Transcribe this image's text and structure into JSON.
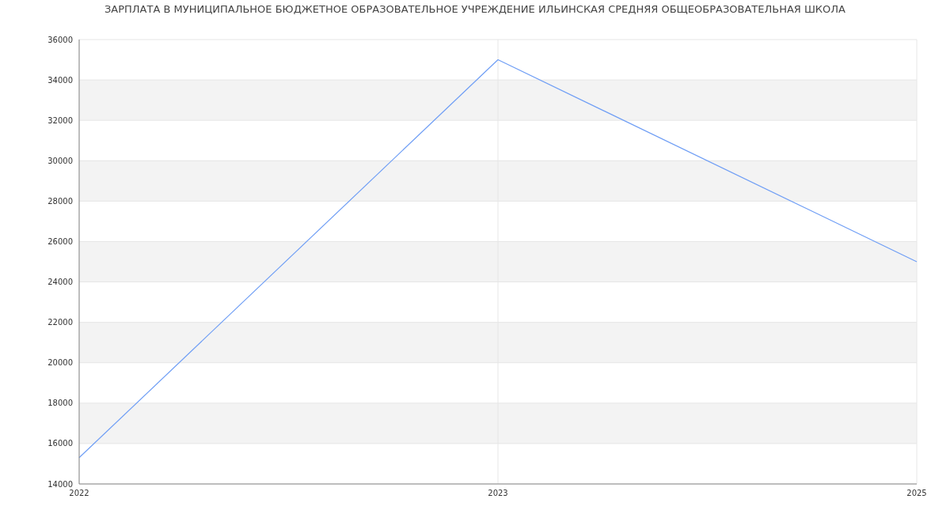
{
  "chart_data": {
    "type": "line",
    "title": "ЗАРПЛАТА В МУНИЦИПАЛЬНОЕ БЮДЖЕТНОЕ ОБРАЗОВАТЕЛЬНОЕ УЧРЕЖДЕНИЕ ИЛЬИНСКАЯ СРЕДНЯЯ ОБЩЕОБРАЗОВАТЕЛЬНАЯ ШКОЛА",
    "categories": [
      "2022",
      "2023",
      "2025"
    ],
    "series": [
      {
        "color": "#6f9ef5",
        "values": [
          15300,
          35000,
          25000
        ]
      }
    ],
    "ylim": [
      14000,
      36000
    ],
    "yticks": [
      14000,
      16000,
      18000,
      20000,
      22000,
      24000,
      26000,
      28000,
      30000,
      32000,
      34000,
      36000
    ],
    "grid": true,
    "marker": "none",
    "line_style": "solid"
  }
}
